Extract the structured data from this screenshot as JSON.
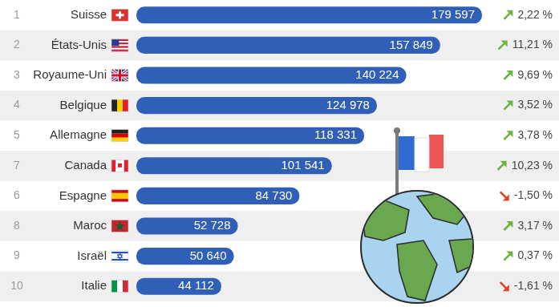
{
  "chart_data": {
    "type": "bar",
    "orientation": "horizontal",
    "categories": [
      "Suisse",
      "États-Unis",
      "Royaume-Uni",
      "Belgique",
      "Allemagne",
      "Canada",
      "Espagne",
      "Maroc",
      "Israël",
      "Italie"
    ],
    "ranks": [
      1,
      2,
      3,
      4,
      5,
      7,
      6,
      8,
      9,
      10
    ],
    "values": [
      179597,
      157849,
      140224,
      124978,
      118331,
      101541,
      84730,
      52728,
      50640,
      44112
    ],
    "value_labels": [
      "179 597",
      "157 849",
      "140 224",
      "124 978",
      "118 331",
      "101 541",
      "84 730",
      "52 728",
      "50 640",
      "44 112"
    ],
    "changes": [
      2.22,
      11.21,
      9.69,
      3.52,
      3.78,
      10.23,
      -1.5,
      3.17,
      0.37,
      -1.61
    ],
    "change_labels": [
      "2,22 %",
      "11,21 %",
      "9,69 %",
      "3,52 %",
      "3,78 %",
      "10,23 %",
      "-1,50 %",
      "3,17 %",
      "0,37 %",
      "-1,61 %"
    ],
    "color": "#2f5fb7",
    "xlim": [
      0,
      180000
    ],
    "data_labels": true,
    "tick_labels": "y",
    "grid": false
  }
}
